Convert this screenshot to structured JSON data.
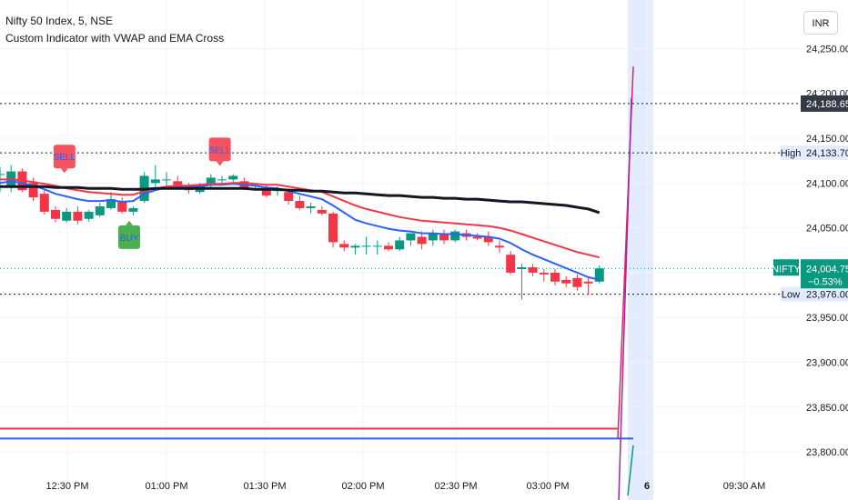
{
  "header": {
    "symbol_title": "Nifty 50 Index, 5, NSE",
    "indicator_title": "Custom Indicator with VWAP and EMA Cross",
    "currency": "INR"
  },
  "colors": {
    "up": "#089981",
    "down": "#f23645",
    "blue_line": "#2962ff",
    "red_line": "#f23645",
    "black_line": "#131722",
    "buy_label": "#4caf50",
    "sell_label": "#f7525f",
    "highlight": "#e3ecfd"
  },
  "chart_data": {
    "type": "candlestick",
    "ylim": [
      23770,
      24290
    ],
    "y_ticks": [
      23800,
      23850,
      23900,
      23950,
      24000,
      24050,
      24100,
      24150,
      24200,
      24250
    ],
    "y_tick_labels": [
      "23,800.00",
      "23,850.00",
      "23,900.00",
      "23,950.00",
      "24,000.00",
      "24,050.00",
      "24,100.00",
      "24,150.00",
      "24,200.00",
      "24,250.00"
    ],
    "x_tick_labels": [
      "12:30 PM",
      "01:00 PM",
      "01:30 PM",
      "02:00 PM",
      "02:30 PM",
      "03:00 PM",
      "6",
      "09:30 AM"
    ],
    "candles": [
      {
        "o": 24110,
        "h": 24118,
        "l": 24090,
        "c": 24110
      },
      {
        "o": 24095,
        "h": 24120,
        "l": 24090,
        "c": 24113
      },
      {
        "o": 24113,
        "h": 24116,
        "l": 24090,
        "c": 24092
      },
      {
        "o": 24100,
        "h": 24106,
        "l": 24080,
        "c": 24084
      },
      {
        "o": 24088,
        "h": 24092,
        "l": 24065,
        "c": 24068
      },
      {
        "o": 24070,
        "h": 24074,
        "l": 24056,
        "c": 24060
      },
      {
        "o": 24058,
        "h": 24072,
        "l": 24056,
        "c": 24068
      },
      {
        "o": 24068,
        "h": 24074,
        "l": 24054,
        "c": 24058
      },
      {
        "o": 24060,
        "h": 24070,
        "l": 24057,
        "c": 24068
      },
      {
        "o": 24064,
        "h": 24078,
        "l": 24062,
        "c": 24074
      },
      {
        "o": 24072,
        "h": 24090,
        "l": 24070,
        "c": 24082
      },
      {
        "o": 24080,
        "h": 24084,
        "l": 24066,
        "c": 24068
      },
      {
        "o": 24068,
        "h": 24074,
        "l": 24064,
        "c": 24072
      },
      {
        "o": 24080,
        "h": 24112,
        "l": 24078,
        "c": 24108
      },
      {
        "o": 24100,
        "h": 24120,
        "l": 24096,
        "c": 24104
      },
      {
        "o": 24104,
        "h": 24112,
        "l": 24096,
        "c": 24104
      },
      {
        "o": 24102,
        "h": 24108,
        "l": 24094,
        "c": 24098
      },
      {
        "o": 24094,
        "h": 24100,
        "l": 24088,
        "c": 24092
      },
      {
        "o": 24090,
        "h": 24100,
        "l": 24088,
        "c": 24098
      },
      {
        "o": 24098,
        "h": 24110,
        "l": 24094,
        "c": 24106
      },
      {
        "o": 24104,
        "h": 24108,
        "l": 24100,
        "c": 24104
      },
      {
        "o": 24104,
        "h": 24110,
        "l": 24100,
        "c": 24108
      },
      {
        "o": 24102,
        "h": 24106,
        "l": 24092,
        "c": 24094
      },
      {
        "o": 24094,
        "h": 24098,
        "l": 24092,
        "c": 24094
      },
      {
        "o": 24094,
        "h": 24098,
        "l": 24084,
        "c": 24086
      },
      {
        "o": 24092,
        "h": 24096,
        "l": 24086,
        "c": 24092
      },
      {
        "o": 24090,
        "h": 24094,
        "l": 24076,
        "c": 24080
      },
      {
        "o": 24080,
        "h": 24086,
        "l": 24070,
        "c": 24072
      },
      {
        "o": 24072,
        "h": 24078,
        "l": 24066,
        "c": 24074
      },
      {
        "o": 24070,
        "h": 24074,
        "l": 24064,
        "c": 24066
      },
      {
        "o": 24066,
        "h": 24068,
        "l": 24028,
        "c": 24034
      },
      {
        "o": 24032,
        "h": 24036,
        "l": 24024,
        "c": 24028
      },
      {
        "o": 24028,
        "h": 24032,
        "l": 24020,
        "c": 24030
      },
      {
        "o": 24030,
        "h": 24040,
        "l": 24020,
        "c": 24030
      },
      {
        "o": 24030,
        "h": 24036,
        "l": 24020,
        "c": 24030
      },
      {
        "o": 24030,
        "h": 24034,
        "l": 24024,
        "c": 24026
      },
      {
        "o": 24026,
        "h": 24040,
        "l": 24024,
        "c": 24036
      },
      {
        "o": 24036,
        "h": 24044,
        "l": 24030,
        "c": 24044
      },
      {
        "o": 24040,
        "h": 24046,
        "l": 24026,
        "c": 24032
      },
      {
        "o": 24036,
        "h": 24048,
        "l": 24030,
        "c": 24044
      },
      {
        "o": 24044,
        "h": 24048,
        "l": 24032,
        "c": 24036
      },
      {
        "o": 24036,
        "h": 24048,
        "l": 24034,
        "c": 24046
      },
      {
        "o": 24044,
        "h": 24048,
        "l": 24036,
        "c": 24040
      },
      {
        "o": 24040,
        "h": 24044,
        "l": 24036,
        "c": 24038
      },
      {
        "o": 24040,
        "h": 24046,
        "l": 24030,
        "c": 24034
      },
      {
        "o": 24030,
        "h": 24036,
        "l": 24022,
        "c": 24028
      },
      {
        "o": 24020,
        "h": 24024,
        "l": 23998,
        "c": 24000
      },
      {
        "o": 24004,
        "h": 24010,
        "l": 23970,
        "c": 24006
      },
      {
        "o": 24006,
        "h": 24010,
        "l": 23996,
        "c": 24000
      },
      {
        "o": 24000,
        "h": 24004,
        "l": 23990,
        "c": 23998
      },
      {
        "o": 24000,
        "h": 24004,
        "l": 23986,
        "c": 23990
      },
      {
        "o": 23992,
        "h": 23996,
        "l": 23984,
        "c": 23988
      },
      {
        "o": 23994,
        "h": 23998,
        "l": 23980,
        "c": 23984
      },
      {
        "o": 23990,
        "h": 23994,
        "l": 23975,
        "c": 23988
      },
      {
        "o": 23990,
        "h": 24008,
        "l": 23988,
        "c": 24004.75
      }
    ],
    "series": [
      {
        "values": [
          24100,
          24102,
          24100,
          24097,
          24093,
          24088,
          24085,
          24082,
          24080,
          24080,
          24081,
          24079,
          24080,
          24088,
          24092,
          24095,
          24096,
          24096,
          24096,
          24098,
          24098,
          24099,
          24098,
          24097,
          24095,
          24094,
          24091,
          24088,
          24085,
          24082,
          24075,
          24067,
          24059,
          24055,
          24052,
          24049,
          24047,
          24046,
          24044,
          24044,
          24043,
          24043,
          24042,
          24041,
          24040,
          24038,
          24033,
          24026,
          24020,
          24015,
          24010,
          24005,
          24000,
          23995,
          23992
        ]
      },
      {
        "values": [
          24104,
          24104,
          24103,
          24101,
          24099,
          24097,
          24094,
          24092,
          24090,
          24089,
          24088,
          24087,
          24087,
          24091,
          24094,
          24096,
          24097,
          24097,
          24098,
          24099,
          24099,
          24100,
          24100,
          24099,
          24098,
          24098,
          24096,
          24094,
          24092,
          24090,
          24085,
          24080,
          24075,
          24071,
          24068,
          24065,
          24062,
          24060,
          24058,
          24057,
          24056,
          24055,
          24054,
          24053,
          24052,
          24050,
          24047,
          24043,
          24039,
          24035,
          24031,
          24027,
          24023,
          24020,
          24017
        ]
      },
      {
        "values": [
          24096,
          24096,
          24096,
          24096,
          24096,
          24095,
          24095,
          24095,
          24094,
          24094,
          24094,
          24093,
          24093,
          24093,
          24094,
          24094,
          24094,
          24094,
          24094,
          24094,
          24094,
          24094,
          24094,
          24093,
          24093,
          24093,
          24092,
          24092,
          24091,
          24091,
          24090,
          24089,
          24089,
          24088,
          24087,
          24086,
          24086,
          24085,
          24084,
          24084,
          24083,
          24083,
          24082,
          24082,
          24081,
          24080,
          24079,
          24079,
          24078,
          24077,
          24076,
          24075,
          24073,
          24071,
          24067
        ]
      }
    ],
    "signals": [
      {
        "type": "SELL",
        "index": 4
      },
      {
        "type": "BUY",
        "index": 10
      },
      {
        "type": "SELL",
        "index": 18
      }
    ],
    "horizontal_levels": [
      {
        "value": 24188.65,
        "label": "24,188.65"
      },
      {
        "value": 24133.7,
        "label": "24,133.70",
        "name": "High"
      },
      {
        "value": 23976.0,
        "label": "23,976.00",
        "name": "Low"
      }
    ],
    "last_price": {
      "symbol": "NIFTY",
      "value": 24004.75,
      "label": "24,004.75",
      "change": "−0.53%"
    },
    "vwap_bands": [
      23826,
      23815
    ],
    "spike_line": {
      "from": 23815,
      "to": 24230
    },
    "spike_line_2": {
      "from": 23815,
      "to": 24195
    }
  }
}
